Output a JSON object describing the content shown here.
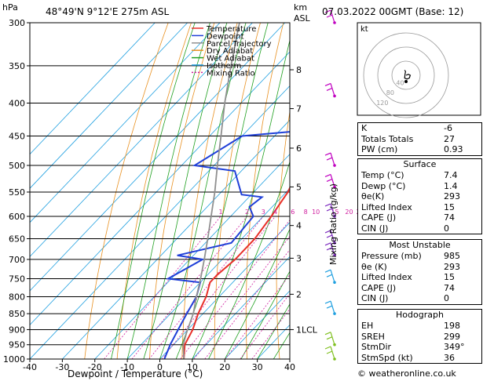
{
  "header": {
    "hpa_label": "hPa",
    "location": "48°49'N  9°12'E  275m  ASL",
    "km_label": "km",
    "asl_label": "ASL",
    "datetime": "07.03.2022  00GMT  (Base: 12)"
  },
  "legend": [
    {
      "label": "Temperature",
      "color": "#e8302a"
    },
    {
      "label": "Dewpoint",
      "color": "#2040d8"
    },
    {
      "label": "Parcel Trajectory",
      "color": "#909090"
    },
    {
      "label": "Dry Adiabat",
      "color": "#e89020"
    },
    {
      "label": "Wet Adiabat",
      "color": "#20a020"
    },
    {
      "label": "Isotherm",
      "color": "#20a0e0"
    },
    {
      "label": "Mixing Ratio",
      "color": "#d020a0"
    }
  ],
  "chart_data": {
    "type": "line",
    "title": "",
    "xlabel": "Dewpoint / Temperature (°C)",
    "ylabel": "hPa",
    "y2label": "Mixing Ratio (g/kg)",
    "xlim": [
      -40,
      40
    ],
    "ylim": [
      1000,
      300
    ],
    "y_scale": "log",
    "x_ticks": [
      -40,
      -30,
      -20,
      -10,
      0,
      10,
      20,
      30,
      40
    ],
    "p_ticks": [
      300,
      350,
      400,
      450,
      500,
      550,
      600,
      650,
      700,
      750,
      800,
      850,
      900,
      950,
      1000
    ],
    "km_ticks": [
      {
        "label": "8",
        "p": 355
      },
      {
        "label": "7",
        "p": 408
      },
      {
        "label": "6",
        "p": 470
      },
      {
        "label": "5",
        "p": 540
      },
      {
        "label": "4",
        "p": 620
      },
      {
        "label": "3",
        "p": 697
      },
      {
        "label": "2",
        "p": 793
      },
      {
        "label": "1LCL",
        "p": 900
      }
    ],
    "mixing_ratio_labels": [
      "1",
      "2",
      "3",
      "4",
      "6",
      "8",
      "10",
      "15",
      "20",
      "25"
    ],
    "mixing_ratio_label_p": 600,
    "series": [
      {
        "name": "Temperature",
        "color": "#e8302a",
        "points": [
          [
            7.4,
            1000
          ],
          [
            3.5,
            950
          ],
          [
            1.5,
            900
          ],
          [
            -1.5,
            850
          ],
          [
            -4,
            800
          ],
          [
            -7,
            760
          ],
          [
            -7,
            740
          ],
          [
            -6,
            700
          ],
          [
            -6,
            650
          ],
          [
            -7.5,
            600
          ],
          [
            -9.5,
            550
          ],
          [
            -13.5,
            500
          ],
          [
            -18.5,
            450
          ],
          [
            -24.5,
            400
          ],
          [
            -30.5,
            350
          ],
          [
            -37,
            300
          ]
        ]
      },
      {
        "name": "Dewpoint",
        "color": "#2040d8",
        "points": [
          [
            1.4,
            1000
          ],
          [
            -1,
            950
          ],
          [
            -3,
            900
          ],
          [
            -5,
            850
          ],
          [
            -7,
            800
          ],
          [
            -10,
            760
          ],
          [
            -21,
            750
          ],
          [
            -16,
            700
          ],
          [
            -25,
            690
          ],
          [
            -12,
            660
          ],
          [
            -13,
            600
          ],
          [
            -17,
            580
          ],
          [
            -16,
            560
          ],
          [
            -23,
            555
          ],
          [
            -32,
            510
          ],
          [
            -46,
            500
          ],
          [
            -40,
            450
          ],
          [
            -20,
            440
          ],
          [
            -14,
            400
          ],
          [
            -15,
            380
          ],
          [
            -21,
            350
          ],
          [
            -27,
            320
          ],
          [
            -31,
            300
          ]
        ]
      },
      {
        "name": "Parcel Trajectory",
        "color": "#909090",
        "points": [
          [
            7.4,
            1000
          ],
          [
            3,
            950
          ],
          [
            0.5,
            910
          ],
          [
            -3,
            850
          ],
          [
            -7,
            800
          ],
          [
            -11,
            750
          ],
          [
            -15.5,
            700
          ],
          [
            -20.5,
            650
          ],
          [
            -26,
            600
          ],
          [
            -32,
            550
          ],
          [
            -39,
            500
          ],
          [
            -46.5,
            450
          ],
          [
            -55,
            400
          ],
          [
            -64,
            350
          ],
          [
            -74,
            300
          ]
        ]
      }
    ],
    "isotherms": [
      -100,
      -90,
      -80,
      -70,
      -60,
      -50,
      -40,
      -30,
      -20,
      -10,
      0,
      10,
      20,
      30,
      40
    ],
    "dry_adiabats_K": [
      250,
      260,
      270,
      280,
      290,
      300,
      310,
      320,
      330,
      340,
      350,
      360,
      370,
      380,
      390,
      400,
      410,
      420,
      430
    ],
    "wet_adiabats_C": [
      -15,
      -10,
      -5,
      0,
      5,
      10,
      15,
      20,
      25,
      30,
      35,
      40
    ],
    "mixing_ratios_gkg": [
      1,
      2,
      3,
      4,
      6,
      8,
      10,
      15,
      20,
      25
    ],
    "wind_barbs_p": [
      300,
      390,
      500,
      540,
      600,
      660,
      690,
      760,
      850,
      950,
      1000
    ],
    "hodograph": {
      "label": "kt",
      "ring_labels": [
        "120",
        "80",
        "40"
      ],
      "trace": [
        [
          0,
          0
        ],
        [
          5,
          2
        ],
        [
          9,
          0
        ],
        [
          7,
          -6
        ],
        [
          2,
          -8
        ],
        [
          -3,
          -6
        ],
        [
          -2,
          3
        ],
        [
          -1,
          8
        ],
        [
          -3,
          11
        ]
      ]
    }
  },
  "indices": [
    {
      "label": "K",
      "value": "-6"
    },
    {
      "label": "Totals Totals",
      "value": "27"
    },
    {
      "label": "PW (cm)",
      "value": "0.93"
    }
  ],
  "surface": {
    "title": "Surface",
    "rows": [
      {
        "label": "Temp (°C)",
        "value": "7.4"
      },
      {
        "label": "Dewp (°C)",
        "value": "1.4"
      },
      {
        "label": "θe(K)",
        "value": "293"
      },
      {
        "label": "Lifted Index",
        "value": "15"
      },
      {
        "label": "CAPE (J)",
        "value": "74"
      },
      {
        "label": "CIN (J)",
        "value": "0"
      }
    ]
  },
  "most_unstable": {
    "title": "Most Unstable",
    "rows": [
      {
        "label": "Pressure (mb)",
        "value": "985"
      },
      {
        "label": "θe (K)",
        "value": "293"
      },
      {
        "label": "Lifted Index",
        "value": "15"
      },
      {
        "label": "CAPE (J)",
        "value": "74"
      },
      {
        "label": "CIN (J)",
        "value": "0"
      }
    ]
  },
  "hodograph_table": {
    "title": "Hodograph",
    "rows": [
      {
        "label": "EH",
        "value": "198"
      },
      {
        "label": "SREH",
        "value": "299"
      },
      {
        "label": "StmDir",
        "value": "349°"
      },
      {
        "label": "StmSpd (kt)",
        "value": "36"
      }
    ]
  },
  "credit": "© weatheronline.co.uk"
}
